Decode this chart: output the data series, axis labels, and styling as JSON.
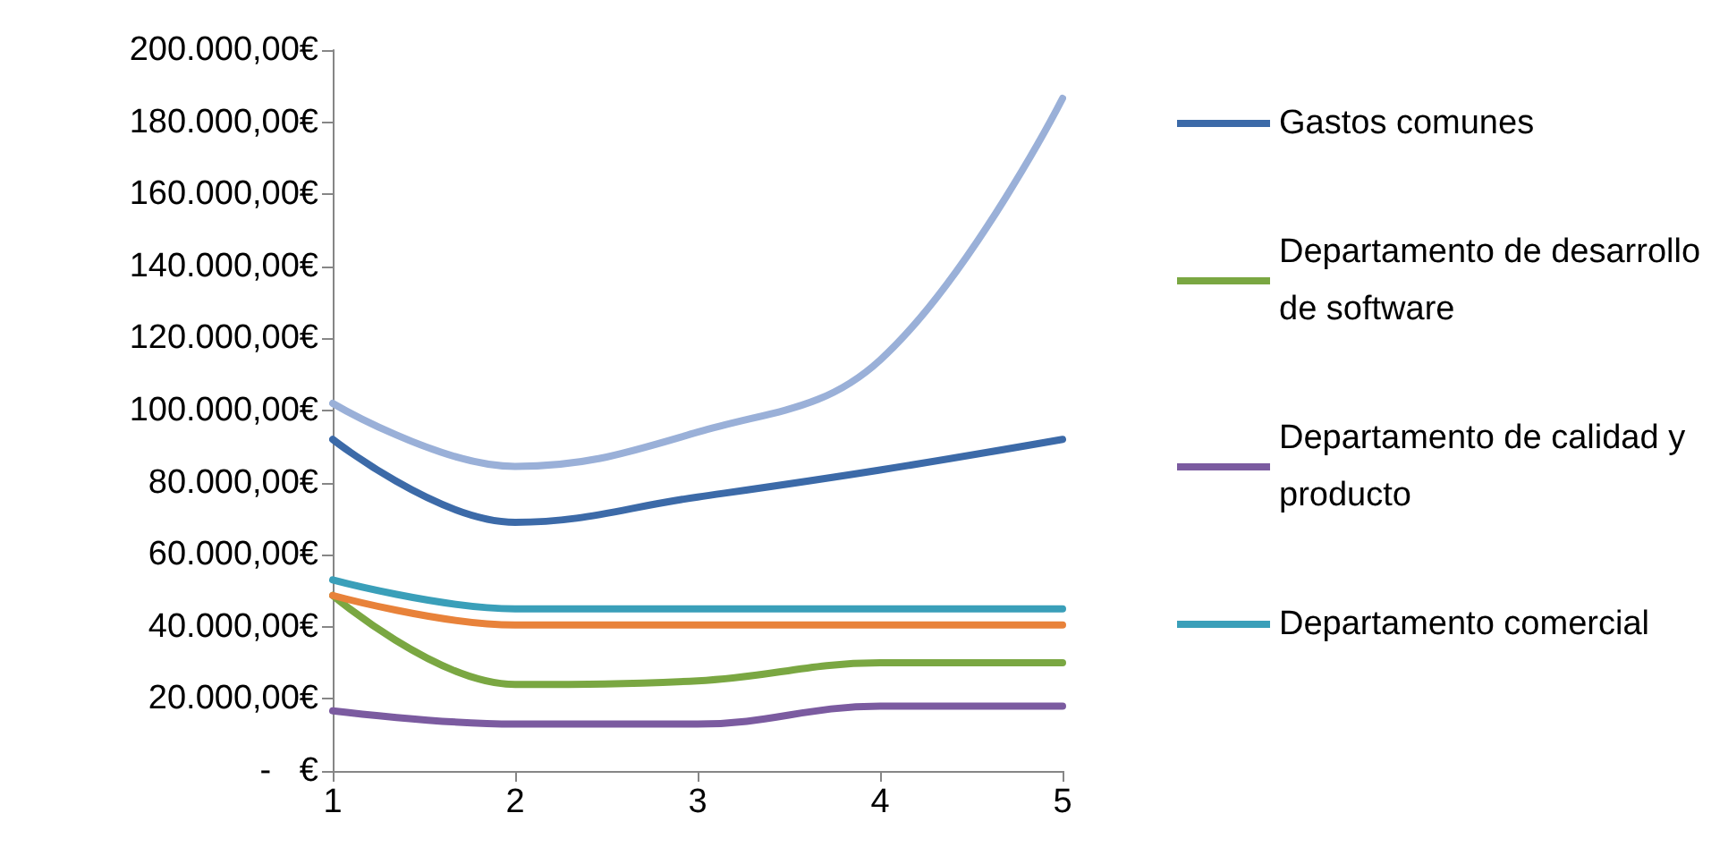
{
  "chart_data": {
    "type": "line",
    "x": [
      1,
      2,
      3,
      4,
      5
    ],
    "xlim": [
      1,
      5
    ],
    "xticks": [
      1,
      2,
      3,
      4,
      5
    ],
    "ylim": [
      0,
      200000
    ],
    "yticks": [
      {
        "value": 0,
        "label": "-   €"
      },
      {
        "value": 20000,
        "label": "20.000,00€"
      },
      {
        "value": 40000,
        "label": "40.000,00€"
      },
      {
        "value": 60000,
        "label": "60.000,00€"
      },
      {
        "value": 80000,
        "label": "80.000,00€"
      },
      {
        "value": 100000,
        "label": "100.000,00€"
      },
      {
        "value": 120000,
        "label": "120.000,00€"
      },
      {
        "value": 140000,
        "label": "140.000,00€"
      },
      {
        "value": 160000,
        "label": "160.000,00€"
      },
      {
        "value": 180000,
        "label": "180.000,00€"
      },
      {
        "value": 200000,
        "label": "200.000,00€"
      }
    ],
    "grid": false,
    "legend": "right",
    "marker": "none",
    "line_style": "solid",
    "series": [
      {
        "name": "Gastos comunes",
        "color": "#3c6aa8",
        "values": [
          92000,
          69000,
          76000,
          83500,
          92000
        ]
      },
      {
        "name": "Departamento de desarrollo de software",
        "color": "#7aa742",
        "values": [
          48700,
          24000,
          25000,
          30000,
          30000
        ]
      },
      {
        "name": "Departamento de calidad y producto",
        "color": "#7b5ba0",
        "values": [
          16700,
          13000,
          13000,
          18000,
          18000
        ]
      },
      {
        "name": "Departamento comercial",
        "color": "#3a9fb9",
        "values": [
          53000,
          45000,
          45000,
          45000,
          45000
        ]
      },
      {
        "color": "#e8823a",
        "values": [
          48700,
          40500,
          40500,
          40500,
          40500
        ]
      },
      {
        "color": "#9ab0d8",
        "values": [
          102000,
          84500,
          94000,
          114000,
          186600
        ]
      }
    ]
  }
}
